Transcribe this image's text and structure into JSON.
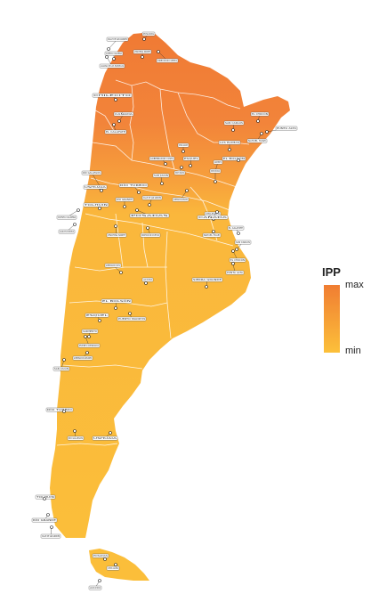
{
  "legend": {
    "title": "IPP",
    "max_label": "max",
    "min_label": "min",
    "color_max": "#f07d32",
    "color_min": "#fcc03a"
  },
  "colors": {
    "north": "#f07a34",
    "north_mid": "#f4903a",
    "center": "#fab73c",
    "south": "#fbbe3a",
    "border": "#ffffff",
    "label_bg": "#ffffff",
    "label_border": "#444444"
  },
  "labels": [
    {
      "text": "VALLE DE SAN ANDRÉS"
    },
    {
      "text": "POSADAS"
    },
    {
      "text": "CUESTA CALDERA"
    },
    {
      "text": "LAGUNA DE LOS POZUELOS"
    },
    {
      "text": "VINCHINA NORTE"
    },
    {
      "text": "DIRECCION CUESTA"
    },
    {
      "text": "CHILECITO"
    },
    {
      "text": "CAÑADA"
    },
    {
      "text": "EL CALAFATE"
    },
    {
      "text": "SAN CARLOS"
    },
    {
      "text": "EL CHOCÓN"
    },
    {
      "text": "NAHUEL HUAPI"
    },
    {
      "text": "PUNTA ALTA"
    },
    {
      "text": "SIERRA GRANDE"
    },
    {
      "text": "GOBERNADOR COSTA"
    },
    {
      "text": "LAS PLUMAS"
    },
    {
      "text": "EL BOLSÓN"
    },
    {
      "text": "ESQUEL"
    },
    {
      "text": "PUERTO MADRYN"
    },
    {
      "text": "SARMIENTO"
    },
    {
      "text": "PUERTO DESEADO"
    },
    {
      "text": "GOBERNADOR GREGORES"
    },
    {
      "text": "SAN JULIÁN"
    },
    {
      "text": "RÍO TURBIO"
    },
    {
      "text": "RÍO GALLEGOS"
    },
    {
      "text": "USHUAIA"
    },
    {
      "text": "TOLHUIN"
    },
    {
      "text": "RÍO GRANDE"
    }
  ]
}
